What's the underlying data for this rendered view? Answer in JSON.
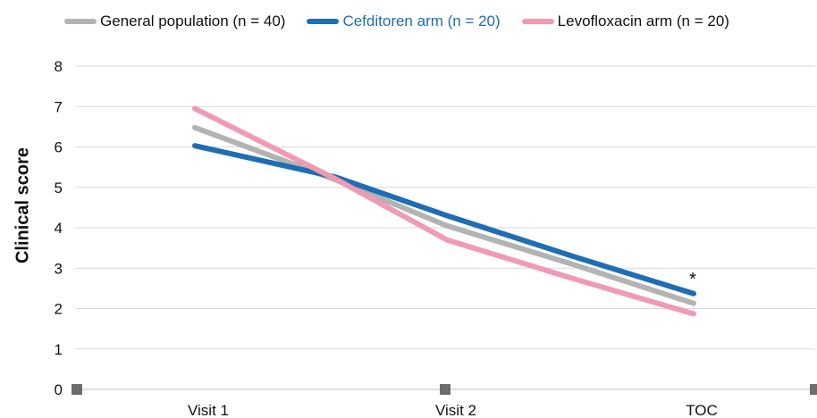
{
  "chart_data": {
    "type": "line",
    "categories": [
      "Visit 1",
      "Visit 2",
      "TOC"
    ],
    "ylabel": "Clinical score",
    "xlabel": "",
    "ylim": [
      0,
      8
    ],
    "yticks": [
      "0",
      "1",
      "2",
      "3",
      "4",
      "5",
      "6",
      "7",
      "8"
    ],
    "grid": true,
    "legend_position": "top",
    "series": [
      {
        "name": "General population (n = 40)",
        "color": "#b3b3b3",
        "points": [
          [
            0.0,
            6.48
          ],
          [
            1.0,
            5.18
          ],
          [
            2.0,
            4.05
          ],
          [
            3.0,
            3.1
          ],
          [
            4.0,
            2.13
          ]
        ]
      },
      {
        "name": "Cefditoren arm (n = 20)",
        "color": "#1f6db5",
        "points": [
          [
            0.0,
            6.03
          ],
          [
            1.0,
            5.25
          ],
          [
            2.0,
            4.3
          ],
          [
            3.0,
            3.3
          ],
          [
            4.0,
            2.37
          ]
        ]
      },
      {
        "name": "Levofloxacin arm (n = 20)",
        "color": "#f19ab3",
        "points": [
          [
            0.0,
            6.95
          ],
          [
            1.0,
            5.2
          ],
          [
            2.0,
            3.7
          ],
          [
            3.0,
            2.75
          ],
          [
            4.0,
            1.87
          ]
        ]
      }
    ],
    "annotations": [
      {
        "text": "*",
        "x": 4.0,
        "y": 2.37
      }
    ],
    "x_markers": [
      0.0,
      2.0,
      4.0
    ]
  }
}
